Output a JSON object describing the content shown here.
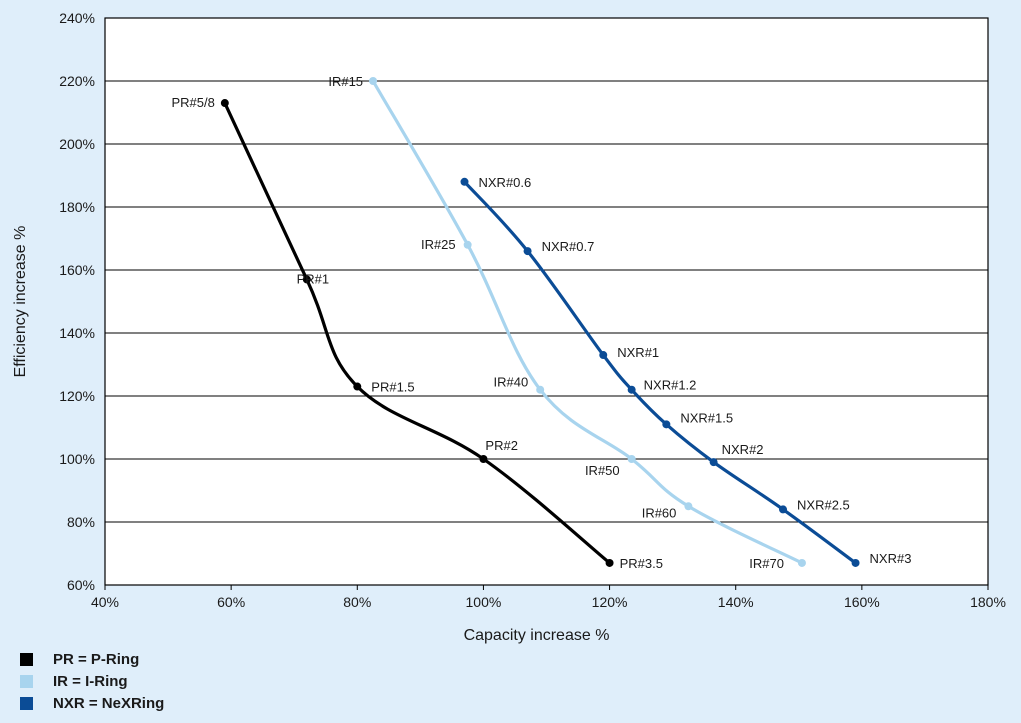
{
  "chart_data": {
    "type": "line",
    "xlabel": "Capacity increase %",
    "ylabel": "Efficiency increase %",
    "xlim": [
      40,
      180
    ],
    "ylim": [
      60,
      240
    ],
    "x_ticks": [
      "40%",
      "60%",
      "80%",
      "100%",
      "120%",
      "140%",
      "160%",
      "180%"
    ],
    "y_ticks": [
      "60%",
      "80%",
      "100%",
      "120%",
      "140%",
      "160%",
      "180%",
      "200%",
      "220%",
      "240%"
    ],
    "grid": "horizontal",
    "series": [
      {
        "name": "PR = P-Ring",
        "color": "#000000",
        "points": [
          {
            "label": "PR#5/8",
            "x": 59,
            "y": 213
          },
          {
            "label": "PR#1",
            "x": 72,
            "y": 157
          },
          {
            "label": "PR#1.5",
            "x": 80,
            "y": 123
          },
          {
            "label": "PR#2",
            "x": 100,
            "y": 100
          },
          {
            "label": "PR#3.5",
            "x": 120,
            "y": 67
          }
        ]
      },
      {
        "name": "IR = I-Ring",
        "color": "#a8d4ee",
        "points": [
          {
            "label": "IR#15",
            "x": 82.5,
            "y": 220
          },
          {
            "label": "IR#25",
            "x": 97.5,
            "y": 168
          },
          {
            "label": "IR#40",
            "x": 109,
            "y": 122
          },
          {
            "label": "IR#50",
            "x": 123.5,
            "y": 100
          },
          {
            "label": "IR#60",
            "x": 132.5,
            "y": 85
          },
          {
            "label": "IR#70",
            "x": 150.5,
            "y": 67
          }
        ]
      },
      {
        "name": "NXR = NeXRing",
        "color": "#0b4c96",
        "points": [
          {
            "label": "NXR#0.6",
            "x": 97,
            "y": 188
          },
          {
            "label": "NXR#0.7",
            "x": 107,
            "y": 166
          },
          {
            "label": "NXR#1",
            "x": 119,
            "y": 133
          },
          {
            "label": "NXR#1.2",
            "x": 123.5,
            "y": 122
          },
          {
            "label": "NXR#1.5",
            "x": 129,
            "y": 111
          },
          {
            "label": "NXR#2",
            "x": 136.5,
            "y": 99
          },
          {
            "label": "NXR#2.5",
            "x": 147.5,
            "y": 84
          },
          {
            "label": "NXR#3",
            "x": 159,
            "y": 67
          }
        ]
      }
    ]
  },
  "legend": {
    "items": [
      {
        "label": "PR = P-Ring",
        "color": "#000000"
      },
      {
        "label": "IR = I-Ring",
        "color": "#a8d4ee"
      },
      {
        "label": "NXR = NeXRing",
        "color": "#0b4c96"
      }
    ]
  }
}
